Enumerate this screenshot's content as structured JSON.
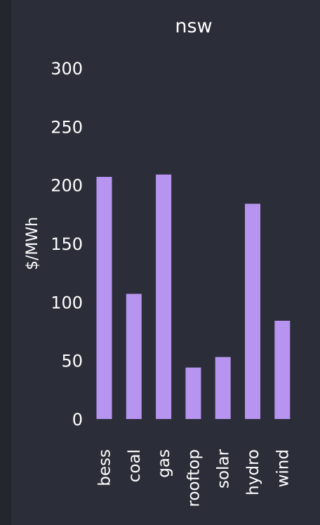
{
  "chart_data": {
    "type": "bar",
    "title": "nsw",
    "xlabel": "",
    "ylabel": "$/MWh",
    "categories": [
      "bess",
      "coal",
      "gas",
      "rooftop",
      "solar",
      "hydro",
      "wind"
    ],
    "values": [
      207,
      107,
      209,
      44,
      53,
      184,
      84
    ],
    "yticks": [
      "0",
      "50",
      "100",
      "150",
      "200",
      "250",
      "300"
    ],
    "ylim": [
      0,
      300
    ],
    "grid": false,
    "bar_color": "#b794f0",
    "background": "#2b2e38"
  }
}
